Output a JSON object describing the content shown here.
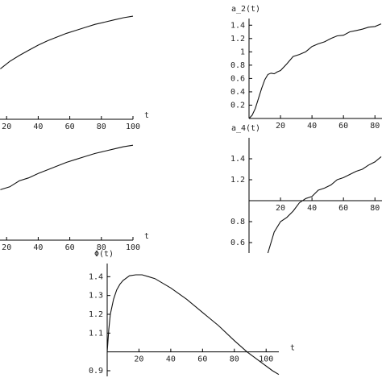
{
  "chart_data": [
    {
      "type": "line",
      "xlabel": "t",
      "x": [
        16,
        22,
        28,
        34,
        40,
        46,
        52,
        58,
        64,
        70,
        76,
        82,
        88,
        94,
        100
      ],
      "values": [
        0.68,
        0.78,
        0.86,
        0.93,
        1.0,
        1.06,
        1.11,
        1.16,
        1.2,
        1.24,
        1.28,
        1.31,
        1.34,
        1.37,
        1.39
      ],
      "xlim": [
        0,
        100
      ],
      "ylim": [
        0,
        1.5
      ],
      "xticks": [
        20,
        40,
        60,
        80,
        100
      ],
      "origin": [
        0,
        0
      ],
      "color": "#111111"
    },
    {
      "type": "line",
      "ylabel": "a_2(t)",
      "x": [
        0,
        2,
        4,
        6,
        8,
        10,
        12,
        14,
        16,
        18,
        20,
        24,
        28,
        32,
        36,
        40,
        44,
        48,
        52,
        56,
        60,
        64,
        68,
        72,
        76,
        80,
        84
      ],
      "values": [
        0,
        0.05,
        0.15,
        0.3,
        0.45,
        0.58,
        0.66,
        0.68,
        0.67,
        0.7,
        0.72,
        0.82,
        0.93,
        0.96,
        1.0,
        1.08,
        1.12,
        1.15,
        1.2,
        1.24,
        1.25,
        1.3,
        1.32,
        1.34,
        1.37,
        1.38,
        1.42
      ],
      "xlim": [
        0,
        85
      ],
      "ylim": [
        0,
        1.5
      ],
      "xticks": [
        20,
        40,
        60,
        80
      ],
      "yticks": [
        0.2,
        0.4,
        0.6,
        0.8,
        1,
        1.2,
        1.4
      ],
      "origin": [
        0,
        0
      ],
      "color": "#111111"
    },
    {
      "type": "line",
      "xlabel": "t",
      "x": [
        16,
        22,
        28,
        34,
        40,
        46,
        52,
        58,
        64,
        70,
        76,
        82,
        88,
        94,
        100
      ],
      "values": [
        0.68,
        0.72,
        0.8,
        0.84,
        0.9,
        0.95,
        1.0,
        1.05,
        1.09,
        1.13,
        1.17,
        1.2,
        1.23,
        1.26,
        1.28
      ],
      "xlim": [
        0,
        100
      ],
      "ylim": [
        0,
        1.5
      ],
      "xticks": [
        20,
        40,
        60,
        80,
        100
      ],
      "origin": [
        0,
        0
      ],
      "color": "#111111"
    },
    {
      "type": "line",
      "ylabel": "a_4(t)",
      "x": [
        12,
        14,
        16,
        20,
        24,
        28,
        32,
        36,
        40,
        44,
        48,
        52,
        56,
        60,
        64,
        68,
        72,
        76,
        80,
        84
      ],
      "values": [
        0.5,
        0.6,
        0.7,
        0.8,
        0.84,
        0.9,
        0.98,
        1.02,
        1.04,
        1.1,
        1.12,
        1.15,
        1.2,
        1.22,
        1.25,
        1.28,
        1.3,
        1.34,
        1.37,
        1.42
      ],
      "xlim": [
        0,
        85
      ],
      "ylim": [
        0.5,
        1.6
      ],
      "xticks": [
        20,
        40,
        60,
        80
      ],
      "yticks": [
        0.6,
        0.8,
        1.2,
        1.4
      ],
      "origin": [
        0,
        1
      ],
      "color": "#111111"
    },
    {
      "type": "line",
      "xlabel": "t",
      "ylabel": "Φ(t)",
      "x": [
        0,
        1,
        2,
        4,
        6,
        8,
        10,
        14,
        18,
        22,
        26,
        30,
        40,
        50,
        60,
        70,
        80,
        88,
        96,
        104,
        108
      ],
      "values": [
        1.0,
        1.12,
        1.2,
        1.28,
        1.33,
        1.36,
        1.38,
        1.405,
        1.41,
        1.41,
        1.4,
        1.39,
        1.34,
        1.28,
        1.21,
        1.14,
        1.06,
        1.0,
        0.95,
        0.9,
        0.88
      ],
      "xlim": [
        0,
        108
      ],
      "ylim": [
        0.87,
        1.47
      ],
      "xticks": [
        20,
        40,
        60,
        80,
        100
      ],
      "yticks": [
        0.9,
        1.1,
        1.2,
        1.3,
        1.4
      ],
      "origin": [
        0,
        1
      ],
      "color": "#111111"
    }
  ]
}
